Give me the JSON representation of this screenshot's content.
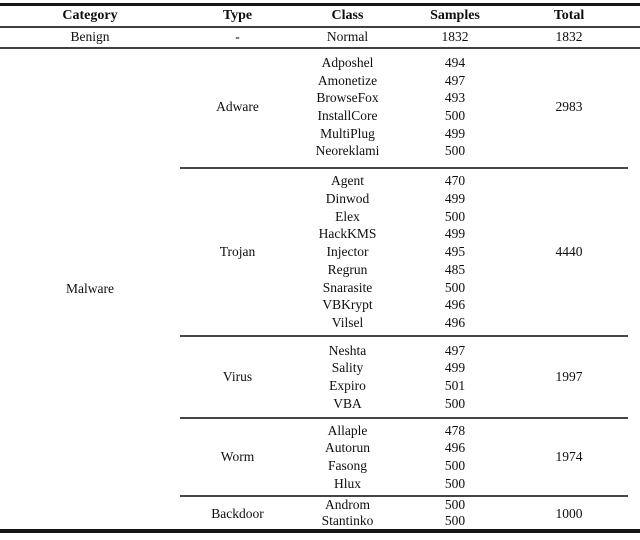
{
  "table": {
    "columns": [
      "Category",
      "Type",
      "Class",
      "Samples",
      "Total"
    ],
    "benign_row": {
      "category": "Benign",
      "type": "-",
      "class": "Normal",
      "samples": "1832",
      "total": "1832"
    },
    "malware": {
      "category": "Malware",
      "groups": [
        {
          "type": "Adware",
          "total": "2983",
          "classes": [
            {
              "name": "Adposhel",
              "samples": "494"
            },
            {
              "name": "Amonetize",
              "samples": "497"
            },
            {
              "name": "BrowseFox",
              "samples": "493"
            },
            {
              "name": "InstallCore",
              "samples": "500"
            },
            {
              "name": "MultiPlug",
              "samples": "499"
            },
            {
              "name": "Neoreklami",
              "samples": "500"
            }
          ]
        },
        {
          "type": "Trojan",
          "total": "4440",
          "classes": [
            {
              "name": "Agent",
              "samples": "470"
            },
            {
              "name": "Dinwod",
              "samples": "499"
            },
            {
              "name": "Elex",
              "samples": "500"
            },
            {
              "name": "HackKMS",
              "samples": "499"
            },
            {
              "name": "Injector",
              "samples": "495"
            },
            {
              "name": "Regrun",
              "samples": "485"
            },
            {
              "name": "Snarasite",
              "samples": "500"
            },
            {
              "name": "VBKrypt",
              "samples": "496"
            },
            {
              "name": "Vilsel",
              "samples": "496"
            }
          ]
        },
        {
          "type": "Virus",
          "total": "1997",
          "classes": [
            {
              "name": "Neshta",
              "samples": "497"
            },
            {
              "name": "Sality",
              "samples": "499"
            },
            {
              "name": "Expiro",
              "samples": "501"
            },
            {
              "name": "VBA",
              "samples": "500"
            }
          ]
        },
        {
          "type": "Worm",
          "total": "1974",
          "classes": [
            {
              "name": "Allaple",
              "samples": "478"
            },
            {
              "name": "Autorun",
              "samples": "496"
            },
            {
              "name": "Fasong",
              "samples": "500"
            },
            {
              "name": "Hlux",
              "samples": "500"
            }
          ]
        },
        {
          "type": "Backdoor",
          "total": "1000",
          "classes": [
            {
              "name": "Androm",
              "samples": "500"
            },
            {
              "name": "Stantinko",
              "samples": "500"
            }
          ]
        }
      ]
    },
    "colors": {
      "heavy_rule": "#161616",
      "thin_rule": "#454545",
      "text": "#0e0e0e",
      "background": "#ffffff"
    }
  }
}
